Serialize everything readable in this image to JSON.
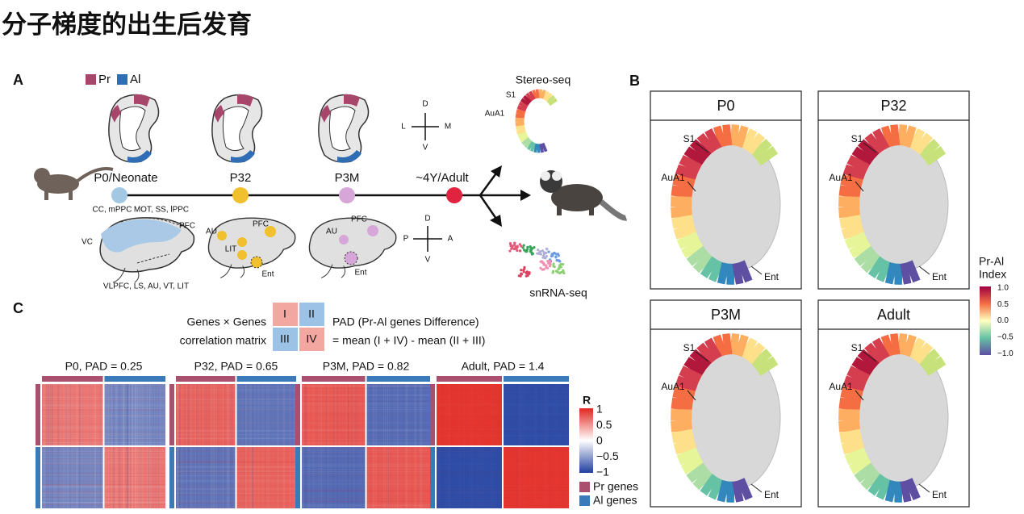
{
  "header": {
    "title": "分子梯度的出生后发育"
  },
  "panel_a": {
    "label": "A",
    "legend": [
      "Pr",
      "Al"
    ],
    "stages": [
      "P0/Neonate",
      "P32",
      "P3M",
      "~4Y/Adult"
    ],
    "compass_coronal": [
      "D",
      "L",
      "M",
      "V"
    ],
    "compass_sagittal": [
      "D",
      "P",
      "A",
      "V"
    ],
    "stereo": {
      "title": "Stereo-seq",
      "s1": "S1",
      "aua1": "AuA1"
    },
    "p0_regions": [
      "CC, mPPC",
      "MOT, SS, lPPC",
      "PFC",
      "VC",
      "VLPFC, LS, AU, VT, LIT"
    ],
    "p32_regions": [
      "AU",
      "PFC",
      "LIT",
      "Ent"
    ],
    "p3m_regions": [
      "AU",
      "PFC",
      "Ent"
    ],
    "snrna": "snRNA-seq"
  },
  "panel_b": {
    "label": "B",
    "panels": [
      {
        "title": "P0",
        "s1": "S1",
        "aua1": "AuA1",
        "ent": "Ent"
      },
      {
        "title": "P32",
        "s1": "S1",
        "aua1": "AuA1",
        "ent": "Ent"
      },
      {
        "title": "P3M",
        "s1": "S1",
        "aua1": "AuA1",
        "ent": "Ent"
      },
      {
        "title": "Adult",
        "s1": "S1",
        "aua1": "AuA1",
        "ent": "Ent"
      }
    ],
    "colorbar": {
      "title": [
        "Pr-Al",
        "Index"
      ],
      "ticks": [
        "1.0",
        "0.5",
        "0.0",
        "−0.5",
        "−1.0"
      ]
    }
  },
  "panel_c": {
    "label": "C",
    "matrix_caption": [
      "Genes × Genes",
      "correlation matrix"
    ],
    "blocks": [
      "I",
      "II",
      "III",
      "IV"
    ],
    "pad_definition": [
      "PAD (Pr-Al genes Difference)",
      "= mean (I + IV) - mean (II + III)"
    ],
    "heatmap_titles": [
      "P0, PAD = 0.25",
      "P32, PAD = 0.65",
      "P3M, PAD = 0.82",
      "Adult, PAD = 1.4"
    ],
    "colorbar": {
      "title": "R",
      "ticks": [
        "1",
        "0.5",
        "0",
        "−0.5",
        "−1"
      ]
    },
    "legend": [
      "Pr genes",
      "Al genes"
    ]
  }
}
